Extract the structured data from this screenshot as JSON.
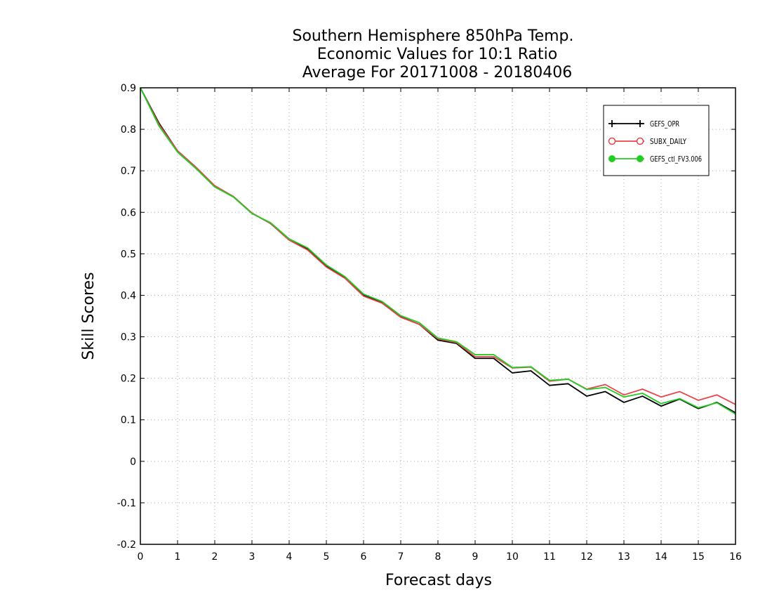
{
  "chart_data": {
    "type": "line",
    "title": [
      "Southern Hemisphere 850hPa Temp.",
      "Economic Values for 10:1 Ratio",
      "Average For 20171008 - 20180406"
    ],
    "xlabel": "Forecast days",
    "ylabel": "Skill Scores",
    "xlim": [
      0,
      16
    ],
    "ylim": [
      -0.2,
      0.9
    ],
    "xticks": [
      "0",
      "1",
      "2",
      "3",
      "4",
      "5",
      "6",
      "7",
      "8",
      "9",
      "10",
      "11",
      "12",
      "13",
      "14",
      "15",
      "16"
    ],
    "yticks": [
      "0.9",
      "0.8",
      "0.7",
      "0.6",
      "0.5",
      "0.4",
      "0.3",
      "0.2",
      "0.1",
      "0",
      "-0.1",
      "-0.2"
    ],
    "grid": true,
    "legend_position": "top-right",
    "x": [
      0,
      0.5,
      1,
      1.5,
      2,
      2.5,
      3,
      3.5,
      4,
      4.5,
      5,
      5.5,
      6,
      6.5,
      7,
      7.5,
      8,
      8.5,
      9,
      9.5,
      10,
      10.5,
      11,
      11.5,
      12,
      12.5,
      13,
      13.5,
      14,
      14.5,
      15,
      15.5,
      16
    ],
    "series": [
      {
        "name": "GEFS_OPR",
        "color": "#000000",
        "marker": "plus",
        "values": [
          0.9,
          0.815,
          0.748,
          0.708,
          0.663,
          0.638,
          0.598,
          0.573,
          0.533,
          0.511,
          0.47,
          0.442,
          0.4,
          0.382,
          0.348,
          0.33,
          0.292,
          0.284,
          0.248,
          0.248,
          0.213,
          0.218,
          0.183,
          0.187,
          0.157,
          0.168,
          0.142,
          0.157,
          0.133,
          0.15,
          0.127,
          0.142,
          0.117
        ]
      },
      {
        "name": "SUBX_DAILY",
        "color": "#e8454a",
        "marker": "circle",
        "values": [
          0.9,
          0.812,
          0.748,
          0.708,
          0.664,
          0.638,
          0.598,
          0.573,
          0.533,
          0.509,
          0.468,
          0.441,
          0.398,
          0.381,
          0.347,
          0.33,
          0.295,
          0.286,
          0.252,
          0.252,
          0.225,
          0.227,
          0.193,
          0.198,
          0.174,
          0.185,
          0.16,
          0.174,
          0.155,
          0.168,
          0.147,
          0.16,
          0.137
        ]
      },
      {
        "name": "GEFS_ctl_FV3.006",
        "color": "#22cc22",
        "marker": "filled-circle",
        "values": [
          0.9,
          0.808,
          0.745,
          0.705,
          0.661,
          0.637,
          0.597,
          0.575,
          0.536,
          0.514,
          0.473,
          0.445,
          0.403,
          0.385,
          0.351,
          0.334,
          0.297,
          0.288,
          0.257,
          0.257,
          0.226,
          0.228,
          0.195,
          0.198,
          0.173,
          0.178,
          0.155,
          0.164,
          0.139,
          0.151,
          0.129,
          0.141,
          0.114
        ]
      }
    ]
  }
}
